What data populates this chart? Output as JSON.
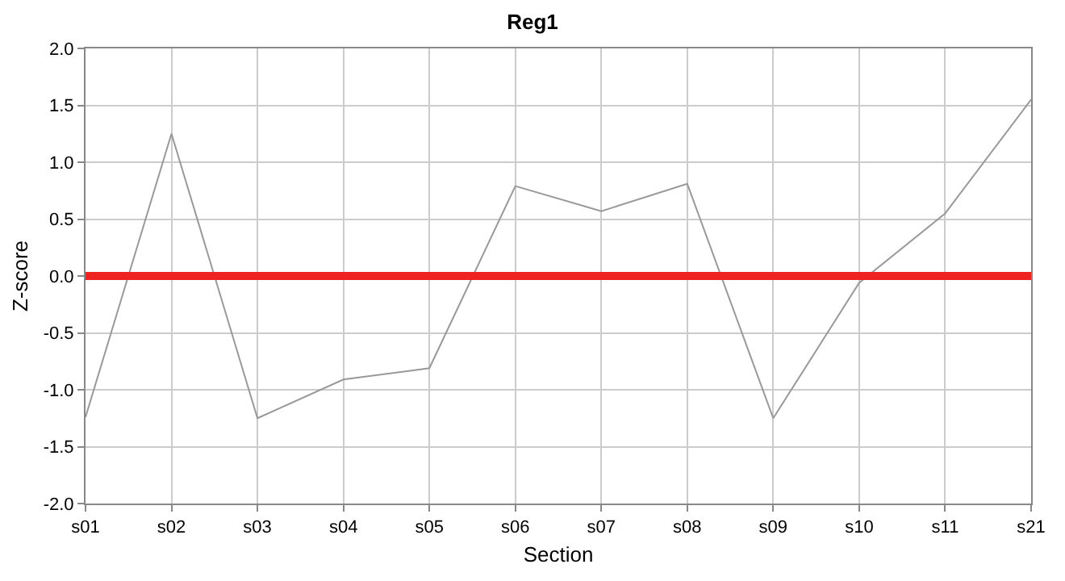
{
  "chart_data": {
    "type": "line",
    "title": "Reg1",
    "xlabel": "Section",
    "ylabel": "Z-score",
    "categories": [
      "s01",
      "s02",
      "s03",
      "s04",
      "s05",
      "s06",
      "s07",
      "s08",
      "s09",
      "s10",
      "s11",
      "s21"
    ],
    "series": [
      {
        "color": "#999999",
        "values": [
          -1.24,
          1.25,
          -1.25,
          -0.91,
          -0.81,
          0.79,
          0.57,
          0.81,
          -1.25,
          -0.06,
          0.55,
          1.55
        ]
      }
    ],
    "ylim": [
      -2,
      2
    ],
    "yticks": [
      {
        "value": -2,
        "label": "-2.0"
      },
      {
        "value": -1.5,
        "label": "-1.5"
      },
      {
        "value": -1,
        "label": "-1.0"
      },
      {
        "value": -0.5,
        "label": "-0.5"
      },
      {
        "value": 0,
        "label": "0.0"
      },
      {
        "value": 0.5,
        "label": "0.5"
      },
      {
        "value": 1,
        "label": "1.0"
      },
      {
        "value": 1.5,
        "label": "1.5"
      },
      {
        "value": 2,
        "label": "2.0"
      }
    ],
    "ref_lines": [
      {
        "axis": "y",
        "value": 0,
        "color": "#ee2222"
      }
    ],
    "grid": true,
    "marker": "none",
    "line_style": "solid"
  }
}
